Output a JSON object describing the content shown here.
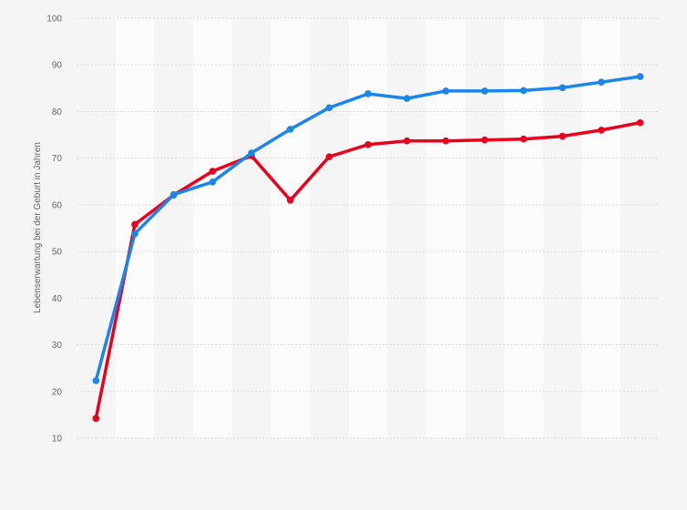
{
  "chart_data": {
    "type": "line",
    "title": "",
    "xlabel": "",
    "ylabel": "Lebenserwartung bei der Geburt in Jahren",
    "ylim": [
      10,
      100
    ],
    "yticks": [
      10,
      20,
      30,
      40,
      50,
      60,
      70,
      80,
      90,
      100
    ],
    "grid": true,
    "legend": "none",
    "x": [
      1,
      2,
      3,
      4,
      5,
      6,
      7,
      8,
      9,
      10,
      11,
      12,
      13,
      14,
      15
    ],
    "series": [
      {
        "color": "#e8001c",
        "values": [
          14.2,
          55.8,
          62.1,
          67.2,
          70.5,
          61.0,
          70.3,
          72.9,
          73.7,
          73.7,
          73.9,
          74.1,
          74.7,
          76.0,
          77.6
        ]
      },
      {
        "color": "#1a86ea",
        "values": [
          22.3,
          53.8,
          62.2,
          64.9,
          71.1,
          76.2,
          80.8,
          83.8,
          82.8,
          84.4,
          84.4,
          84.5,
          85.1,
          86.3,
          87.5
        ]
      }
    ]
  }
}
